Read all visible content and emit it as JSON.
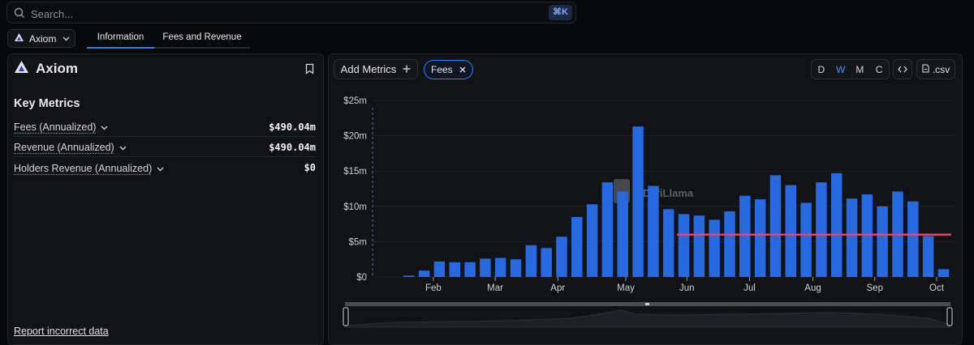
{
  "search": {
    "placeholder": "Search...",
    "shortcut": "⌘K"
  },
  "project_selector": {
    "name": "Axiom"
  },
  "tabs": [
    {
      "label": "Information",
      "active": true
    },
    {
      "label": "Fees and Revenue",
      "active": false
    }
  ],
  "project": {
    "name": "Axiom"
  },
  "key_metrics": {
    "heading": "Key Metrics",
    "rows": [
      {
        "label": "Fees (Annualized)",
        "value": "$490.04m"
      },
      {
        "label": "Revenue (Annualized)",
        "value": "$490.04m"
      },
      {
        "label": "Holders Revenue (Annualized)",
        "value": "$0"
      }
    ]
  },
  "report_link": "Report incorrect data",
  "chart_controls": {
    "add_metrics": "Add Metrics",
    "chip": "Fees",
    "granularity": [
      "D",
      "W",
      "M",
      "C"
    ],
    "selected_granularity": "W",
    "embed_icon": "code-icon",
    "csv": ".csv"
  },
  "watermark": "DefiLlama",
  "colors": {
    "accent": "#2f7ff5",
    "bar": "#2669e0",
    "avg_line": "#e8476a"
  },
  "chart_data": {
    "type": "bar",
    "title": "",
    "xlabel": "",
    "ylabel": "",
    "ylim": [
      0,
      25
    ],
    "y_unit": "$m",
    "y_ticks": [
      "$0",
      "$5m",
      "$10m",
      "$15m",
      "$20m",
      "$25m"
    ],
    "x_ticks": [
      {
        "label": "Feb",
        "at": 1.6
      },
      {
        "label": "Mar",
        "at": 5.65
      },
      {
        "label": "Apr",
        "at": 9.75
      },
      {
        "label": "May",
        "at": 14.2
      },
      {
        "label": "Jun",
        "at": 18.2
      },
      {
        "label": "Jul",
        "at": 22.3
      },
      {
        "label": "Aug",
        "at": 26.45
      },
      {
        "label": "Sep",
        "at": 30.5
      },
      {
        "label": "Oct",
        "at": 34.55
      }
    ],
    "series": [
      {
        "values": [
          0.2,
          0.9,
          2.2,
          2.1,
          2.1,
          2.6,
          2.7,
          2.5,
          4.5,
          4.1,
          5.7,
          8.5,
          10.3,
          13.4,
          12.1,
          21.3,
          12.9,
          9.6,
          8.9,
          8.7,
          8.1,
          9.3,
          11.5,
          11.0,
          14.4,
          13.0,
          10.5,
          13.4,
          14.7,
          11.1,
          11.7,
          10.0,
          12.1,
          10.7,
          5.8,
          1.1
        ]
      }
    ],
    "average_line": {
      "value": 6.0,
      "from_index": 17.55,
      "to_index": 35.5
    },
    "grid": true,
    "legend": "none"
  }
}
